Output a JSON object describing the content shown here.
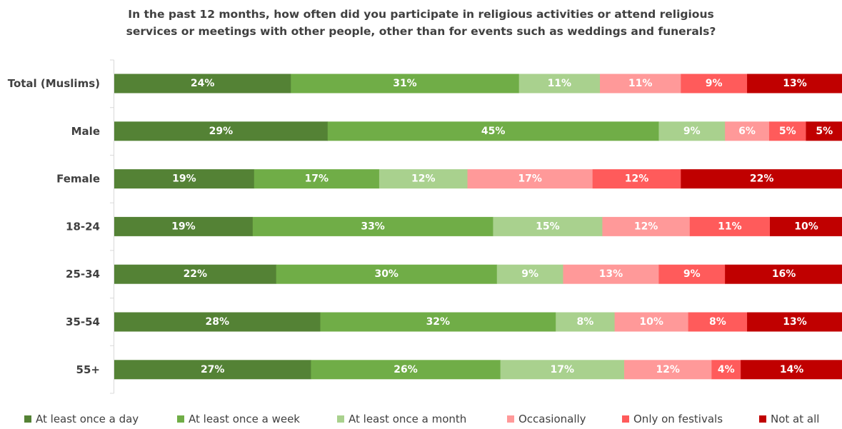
{
  "chart_data": {
    "type": "bar",
    "orientation": "horizontal",
    "stacked": true,
    "title_lines": [
      "In the past 12 months, how often did you participate in religious activities or attend religious",
      "services or meetings with other people, other than for events such as weddings and funerals?"
    ],
    "categories": [
      "Total (Muslims)",
      "Male",
      "Female",
      "18-24",
      "25-34",
      "35-54",
      "55+"
    ],
    "series": [
      {
        "name": "At least once a day",
        "color": "#548235",
        "values": [
          24,
          29,
          19,
          19,
          22,
          28,
          27
        ],
        "labels": [
          "24%",
          "29%",
          "19%",
          "19%",
          "22%",
          "28%",
          "27%"
        ]
      },
      {
        "name": "At least once a week",
        "color": "#70AD47",
        "values": [
          31,
          45,
          17,
          33,
          30,
          32,
          26
        ],
        "labels": [
          "31%",
          "45%",
          "17%",
          "33%",
          "30%",
          "32%",
          "26%"
        ]
      },
      {
        "name": "At least once a month",
        "color": "#A9D18E",
        "values": [
          11,
          9,
          12,
          15,
          9,
          8,
          17
        ],
        "labels": [
          "11%",
          "9%",
          "12%",
          "15%",
          "9%",
          "8%",
          "17%"
        ]
      },
      {
        "name": "Occasionally",
        "color": "#FF9999",
        "values": [
          11,
          6,
          17,
          12,
          13,
          10,
          12
        ],
        "labels": [
          "11%",
          "6%",
          "17%",
          "12%",
          "13%",
          "10%",
          "12%"
        ]
      },
      {
        "name": "Only on festivals",
        "color": "#FF5B5B",
        "values": [
          9,
          5,
          12,
          11,
          9,
          8,
          4
        ],
        "labels": [
          "9%",
          "5%",
          "12%",
          "11%",
          "9%",
          "8%",
          "4%"
        ]
      },
      {
        "name": "Not at all",
        "color": "#C00000",
        "values": [
          13,
          5,
          22,
          10,
          16,
          13,
          14
        ],
        "labels": [
          "13%",
          "5%",
          "22%",
          "10%",
          "16%",
          "13%",
          "14%"
        ]
      }
    ],
    "legend_position": "bottom",
    "grid": false
  }
}
